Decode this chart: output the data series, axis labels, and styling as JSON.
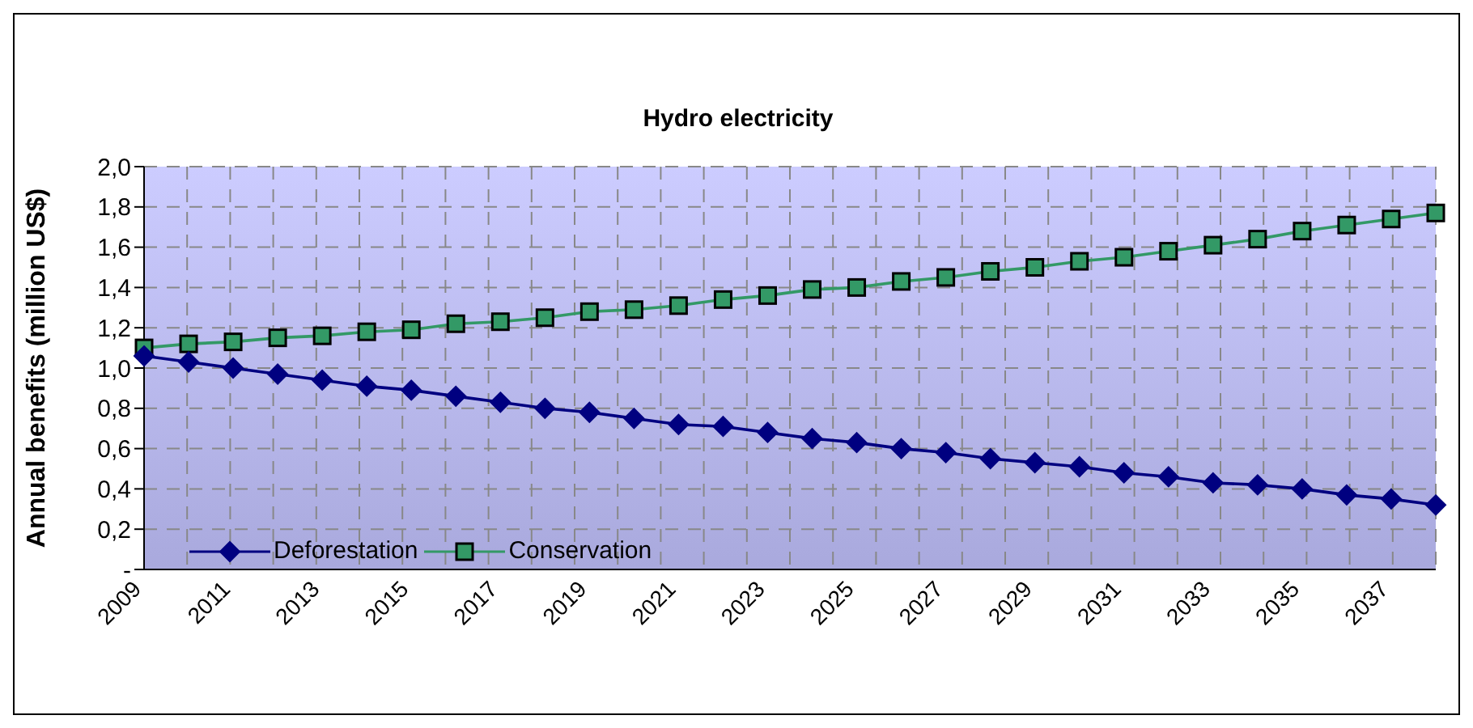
{
  "chart_data": {
    "type": "line",
    "title": "Hydro electricity",
    "ylabel": "Annual benefits (million US$)",
    "categories": [
      "2009",
      null,
      "2011",
      null,
      "2013",
      null,
      "2015",
      null,
      "2017",
      null,
      "2019",
      null,
      "2021",
      null,
      "2023",
      null,
      "2025",
      null,
      "2027",
      null,
      "2029",
      null,
      "2031",
      null,
      "2033",
      null,
      "2035",
      null,
      "2037",
      null
    ],
    "series": [
      {
        "name": "Deforestation",
        "color": "#000080",
        "marker": "diamond",
        "values": [
          1.06,
          1.03,
          1.0,
          0.97,
          0.94,
          0.91,
          0.89,
          0.86,
          0.83,
          0.8,
          0.78,
          0.75,
          0.72,
          0.71,
          0.68,
          0.65,
          0.63,
          0.6,
          0.58,
          0.55,
          0.53,
          0.51,
          0.48,
          0.46,
          0.43,
          0.42,
          0.4,
          0.37,
          0.35,
          0.32
        ]
      },
      {
        "name": "Conservation",
        "color": "#339966",
        "marker": "square",
        "values": [
          1.1,
          1.12,
          1.13,
          1.15,
          1.16,
          1.18,
          1.19,
          1.22,
          1.23,
          1.25,
          1.28,
          1.29,
          1.31,
          1.34,
          1.36,
          1.39,
          1.4,
          1.43,
          1.45,
          1.48,
          1.5,
          1.53,
          1.55,
          1.58,
          1.61,
          1.64,
          1.68,
          1.71,
          1.74,
          1.77
        ]
      }
    ],
    "ylim": [
      0,
      2
    ],
    "yticks": [
      {
        "value": 0,
        "label": "-"
      },
      {
        "value": 0.2,
        "label": "0,2"
      },
      {
        "value": 0.4,
        "label": "0,4"
      },
      {
        "value": 0.6,
        "label": "0,6"
      },
      {
        "value": 0.8,
        "label": "0,8"
      },
      {
        "value": 1.0,
        "label": "1,0"
      },
      {
        "value": 1.2,
        "label": "1,2"
      },
      {
        "value": 1.4,
        "label": "1,4"
      },
      {
        "value": 1.6,
        "label": "1,6"
      },
      {
        "value": 1.8,
        "label": "1,8"
      },
      {
        "value": 2.0,
        "label": "2,0"
      }
    ],
    "grid": true,
    "line_style": "solid",
    "legend": "bottom left"
  }
}
